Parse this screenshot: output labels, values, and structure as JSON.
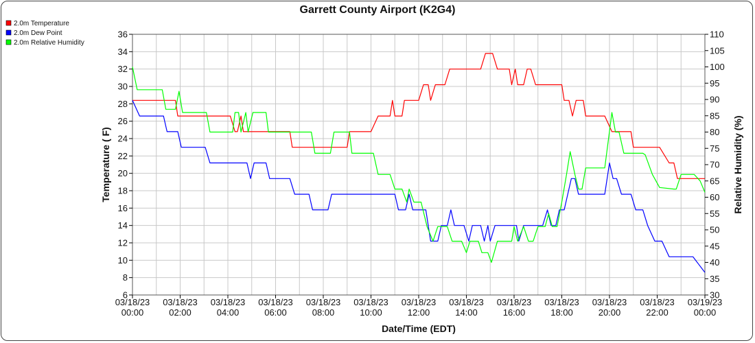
{
  "chart_data": {
    "type": "line",
    "title": "Garrett County Airport (K2G4)",
    "xlabel": "Date/Time (EDT)",
    "ylabel_left": "Temperature ( F)",
    "ylabel_right": "Relative Humidity (%)",
    "xlim_hours": [
      0,
      24
    ],
    "ylim_left": [
      6,
      36
    ],
    "ylim_right": [
      30,
      110
    ],
    "grid": true,
    "legend_position": "top-left",
    "x_ticks": [
      {
        "date": "03/18/23",
        "time": "00:00"
      },
      {
        "date": "03/18/23",
        "time": "02:00"
      },
      {
        "date": "03/18/23",
        "time": "04:00"
      },
      {
        "date": "03/18/23",
        "time": "06:00"
      },
      {
        "date": "03/18/23",
        "time": "08:00"
      },
      {
        "date": "03/18/23",
        "time": "10:00"
      },
      {
        "date": "03/18/23",
        "time": "12:00"
      },
      {
        "date": "03/18/23",
        "time": "14:00"
      },
      {
        "date": "03/18/23",
        "time": "16:00"
      },
      {
        "date": "03/18/23",
        "time": "18:00"
      },
      {
        "date": "03/18/23",
        "time": "20:00"
      },
      {
        "date": "03/18/23",
        "time": "22:00"
      },
      {
        "date": "03/19/23",
        "time": "00:00"
      }
    ],
    "y_ticks_left": [
      6,
      8,
      10,
      12,
      14,
      16,
      18,
      20,
      22,
      24,
      26,
      28,
      30,
      32,
      34,
      36
    ],
    "y_ticks_right": [
      30,
      35,
      40,
      45,
      50,
      55,
      60,
      65,
      70,
      75,
      80,
      85,
      90,
      95,
      100,
      105,
      110
    ],
    "series": [
      {
        "name": "2.0m Temperature",
        "color": "#ff0000",
        "axis": "left",
        "points": [
          [
            0.0,
            28.4
          ],
          [
            1.8,
            28.4
          ],
          [
            1.9,
            26.6
          ],
          [
            4.1,
            26.6
          ],
          [
            4.3,
            24.8
          ],
          [
            4.4,
            24.8
          ],
          [
            4.55,
            26.6
          ],
          [
            4.65,
            24.8
          ],
          [
            5.0,
            24.8
          ],
          [
            6.6,
            24.8
          ],
          [
            6.7,
            23.0
          ],
          [
            9.0,
            23.0
          ],
          [
            9.1,
            24.8
          ],
          [
            10.0,
            24.8
          ],
          [
            10.3,
            26.6
          ],
          [
            10.8,
            26.6
          ],
          [
            10.9,
            28.4
          ],
          [
            11.0,
            26.6
          ],
          [
            11.3,
            26.6
          ],
          [
            11.4,
            28.4
          ],
          [
            12.0,
            28.4
          ],
          [
            12.2,
            30.2
          ],
          [
            12.4,
            30.2
          ],
          [
            12.5,
            28.4
          ],
          [
            12.7,
            30.2
          ],
          [
            13.1,
            30.2
          ],
          [
            13.3,
            32.0
          ],
          [
            14.6,
            32.0
          ],
          [
            14.8,
            33.8
          ],
          [
            15.1,
            33.8
          ],
          [
            15.3,
            32.0
          ],
          [
            15.8,
            32.0
          ],
          [
            15.9,
            30.2
          ],
          [
            16.05,
            32.0
          ],
          [
            16.15,
            30.2
          ],
          [
            16.4,
            30.2
          ],
          [
            16.55,
            32.0
          ],
          [
            16.7,
            32.0
          ],
          [
            16.9,
            30.2
          ],
          [
            18.0,
            30.2
          ],
          [
            18.1,
            28.4
          ],
          [
            18.3,
            28.4
          ],
          [
            18.45,
            26.6
          ],
          [
            18.6,
            28.4
          ],
          [
            18.9,
            28.4
          ],
          [
            19.0,
            26.6
          ],
          [
            19.8,
            26.6
          ],
          [
            20.1,
            24.8
          ],
          [
            20.9,
            24.8
          ],
          [
            21.0,
            23.0
          ],
          [
            22.1,
            23.0
          ],
          [
            22.5,
            21.2
          ],
          [
            22.7,
            21.2
          ],
          [
            22.85,
            19.4
          ],
          [
            23.8,
            19.4
          ],
          [
            24.0,
            19.4
          ]
        ]
      },
      {
        "name": "2.0m Dew Point",
        "color": "#0000ff",
        "axis": "left",
        "points": [
          [
            0.0,
            28.4
          ],
          [
            0.3,
            26.6
          ],
          [
            1.3,
            26.6
          ],
          [
            1.45,
            24.8
          ],
          [
            1.9,
            24.8
          ],
          [
            2.05,
            23.0
          ],
          [
            3.05,
            23.0
          ],
          [
            3.25,
            21.2
          ],
          [
            4.8,
            21.2
          ],
          [
            4.95,
            19.4
          ],
          [
            5.1,
            21.2
          ],
          [
            5.6,
            21.2
          ],
          [
            5.75,
            19.4
          ],
          [
            6.6,
            19.4
          ],
          [
            6.8,
            17.6
          ],
          [
            7.4,
            17.6
          ],
          [
            7.55,
            15.8
          ],
          [
            8.2,
            15.8
          ],
          [
            8.35,
            17.6
          ],
          [
            11.0,
            17.6
          ],
          [
            11.15,
            15.8
          ],
          [
            11.45,
            15.8
          ],
          [
            11.6,
            17.6
          ],
          [
            11.75,
            15.8
          ],
          [
            12.3,
            15.8
          ],
          [
            12.5,
            12.2
          ],
          [
            12.8,
            12.2
          ],
          [
            12.95,
            14.0
          ],
          [
            13.2,
            14.0
          ],
          [
            13.35,
            15.8
          ],
          [
            13.5,
            14.0
          ],
          [
            13.9,
            14.0
          ],
          [
            14.1,
            12.2
          ],
          [
            14.25,
            14.0
          ],
          [
            14.6,
            14.0
          ],
          [
            14.75,
            12.2
          ],
          [
            14.9,
            14.0
          ],
          [
            15.0,
            12.2
          ],
          [
            15.2,
            14.0
          ],
          [
            16.1,
            14.0
          ],
          [
            16.2,
            12.2
          ],
          [
            16.4,
            14.0
          ],
          [
            17.2,
            14.0
          ],
          [
            17.4,
            15.8
          ],
          [
            17.55,
            14.0
          ],
          [
            17.75,
            14.0
          ],
          [
            17.9,
            15.8
          ],
          [
            18.1,
            15.8
          ],
          [
            18.4,
            19.4
          ],
          [
            18.55,
            19.4
          ],
          [
            18.7,
            17.6
          ],
          [
            19.8,
            17.6
          ],
          [
            20.0,
            21.2
          ],
          [
            20.15,
            19.4
          ],
          [
            20.3,
            19.4
          ],
          [
            20.5,
            17.6
          ],
          [
            20.9,
            17.6
          ],
          [
            21.1,
            15.8
          ],
          [
            21.4,
            15.8
          ],
          [
            21.6,
            14.0
          ],
          [
            21.9,
            12.2
          ],
          [
            22.2,
            12.2
          ],
          [
            22.5,
            10.4
          ],
          [
            23.5,
            10.4
          ],
          [
            24.0,
            8.6
          ]
        ]
      },
      {
        "name": "2.0m Relative Humidity",
        "color": "#00ff00",
        "axis": "right",
        "points": [
          [
            0.0,
            100.0
          ],
          [
            0.2,
            93.0
          ],
          [
            1.25,
            93.0
          ],
          [
            1.4,
            87.0
          ],
          [
            1.8,
            87.0
          ],
          [
            1.95,
            92.5
          ],
          [
            2.1,
            86.0
          ],
          [
            3.1,
            86.0
          ],
          [
            3.25,
            80.0
          ],
          [
            4.2,
            80.0
          ],
          [
            4.3,
            86.0
          ],
          [
            4.45,
            86.0
          ],
          [
            4.55,
            80.0
          ],
          [
            4.75,
            86.0
          ],
          [
            4.85,
            80.0
          ],
          [
            5.05,
            86.0
          ],
          [
            5.6,
            86.0
          ],
          [
            5.7,
            80.0
          ],
          [
            7.5,
            80.0
          ],
          [
            7.65,
            73.5
          ],
          [
            8.3,
            73.5
          ],
          [
            8.45,
            80.0
          ],
          [
            9.1,
            80.0
          ],
          [
            9.2,
            73.5
          ],
          [
            10.1,
            73.5
          ],
          [
            10.3,
            67.0
          ],
          [
            10.8,
            67.0
          ],
          [
            11.0,
            62.5
          ],
          [
            11.3,
            62.5
          ],
          [
            11.5,
            58.5
          ],
          [
            11.6,
            62.5
          ],
          [
            11.8,
            58.5
          ],
          [
            12.1,
            58.5
          ],
          [
            12.35,
            51.0
          ],
          [
            12.6,
            46.5
          ],
          [
            12.8,
            51.0
          ],
          [
            13.2,
            51.0
          ],
          [
            13.4,
            46.5
          ],
          [
            13.8,
            46.5
          ],
          [
            14.0,
            43.0
          ],
          [
            14.15,
            46.5
          ],
          [
            14.5,
            46.5
          ],
          [
            14.65,
            43.0
          ],
          [
            14.9,
            43.0
          ],
          [
            15.05,
            40.0
          ],
          [
            15.3,
            46.5
          ],
          [
            15.9,
            46.5
          ],
          [
            16.0,
            51.0
          ],
          [
            16.15,
            46.5
          ],
          [
            16.4,
            51.0
          ],
          [
            16.6,
            46.5
          ],
          [
            16.8,
            46.5
          ],
          [
            17.0,
            51.0
          ],
          [
            17.3,
            51.0
          ],
          [
            17.45,
            55.0
          ],
          [
            17.6,
            51.0
          ],
          [
            17.8,
            51.0
          ],
          [
            18.0,
            58.5
          ],
          [
            18.2,
            67.0
          ],
          [
            18.35,
            74.0
          ],
          [
            18.55,
            67.0
          ],
          [
            18.7,
            62.5
          ],
          [
            18.85,
            62.5
          ],
          [
            19.0,
            69.0
          ],
          [
            19.8,
            69.0
          ],
          [
            20.1,
            86.0
          ],
          [
            20.25,
            80.0
          ],
          [
            20.4,
            80.0
          ],
          [
            20.6,
            73.5
          ],
          [
            21.4,
            73.5
          ],
          [
            21.5,
            73.0
          ],
          [
            21.8,
            67.0
          ],
          [
            22.1,
            63.0
          ],
          [
            22.7,
            62.5
          ],
          [
            22.8,
            62.5
          ],
          [
            23.0,
            67.0
          ],
          [
            23.55,
            67.0
          ],
          [
            23.8,
            65.0
          ],
          [
            24.0,
            61.5
          ]
        ]
      }
    ]
  }
}
